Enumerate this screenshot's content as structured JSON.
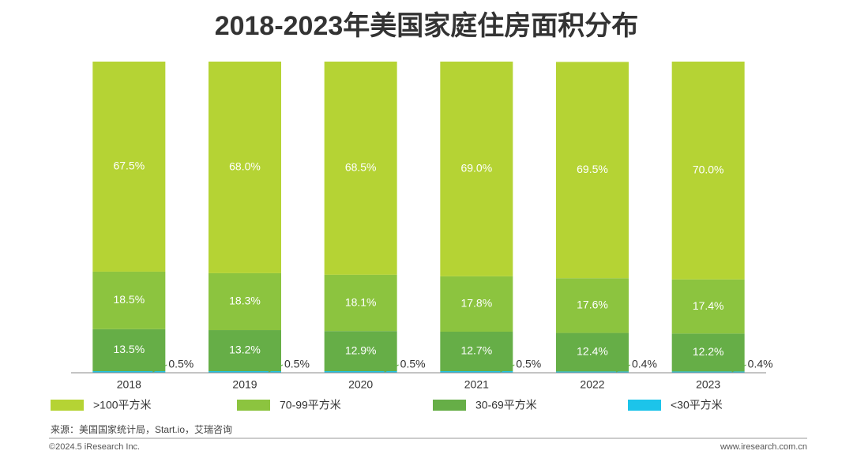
{
  "chart_data": {
    "type": "stacked-bar",
    "title": "2018-2023年美国家庭住房面积分布",
    "categories": [
      "2018",
      "2019",
      "2020",
      "2021",
      "2022",
      "2023"
    ],
    "series": [
      {
        "name": ">100平方米",
        "color": "#b5d334",
        "values": [
          67.5,
          68.0,
          68.5,
          69.0,
          69.5,
          70.0
        ],
        "value_labels": [
          "67.5%",
          "68.0%",
          "68.5%",
          "69.0%",
          "69.5%",
          "70.0%"
        ]
      },
      {
        "name": "70-99平方米",
        "color": "#8cc43f",
        "values": [
          18.5,
          18.3,
          18.1,
          17.8,
          17.6,
          17.4
        ],
        "value_labels": [
          "18.5%",
          "18.3%",
          "18.1%",
          "17.8%",
          "17.6%",
          "17.4%"
        ]
      },
      {
        "name": "30-69平方米",
        "color": "#66ae47",
        "values": [
          13.5,
          13.2,
          12.9,
          12.7,
          12.4,
          12.2
        ],
        "value_labels": [
          "13.5%",
          "13.2%",
          "12.9%",
          "12.7%",
          "12.4%",
          "12.2%"
        ]
      },
      {
        "name": "<30平方米",
        "color": "#1cc4ea",
        "values": [
          0.5,
          0.5,
          0.5,
          0.5,
          0.4,
          0.4
        ],
        "value_labels": [
          "0.5%",
          "0.5%",
          "0.5%",
          "0.5%",
          "0.4%",
          "0.4%"
        ]
      }
    ],
    "ylim": [
      0,
      100
    ],
    "source": "来源：美国国家统计局，Start.io，艾瑞咨询",
    "copyright": "©2024.5 iResearch Inc.",
    "website": "www.iresearch.com.cn"
  }
}
